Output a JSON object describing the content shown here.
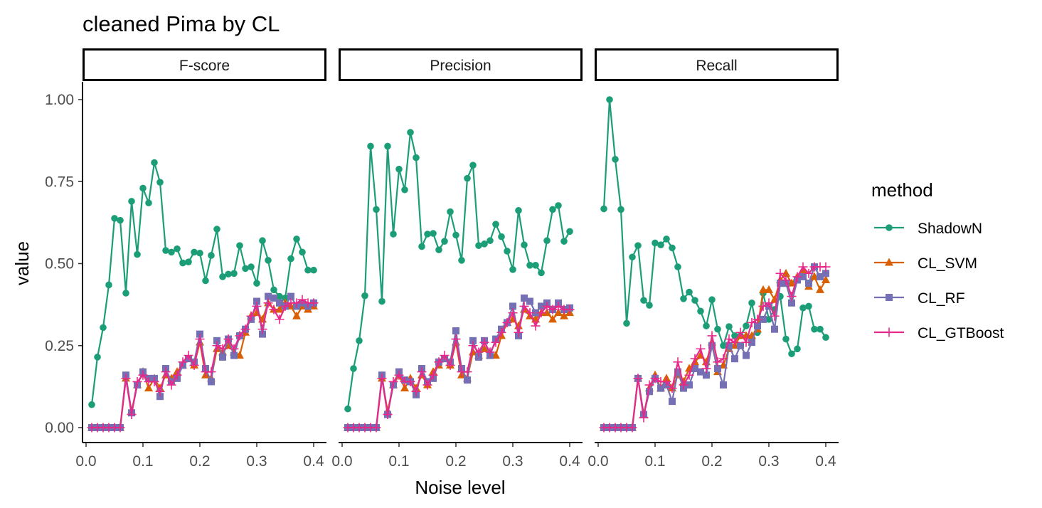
{
  "chart_data": {
    "type": "line",
    "title": "cleaned Pima by CL",
    "xlabel": "Noise level",
    "ylabel": "value",
    "xlim": [
      0.0,
      0.4
    ],
    "ylim": [
      0.0,
      1.0
    ],
    "x_ticks": [
      "0.0",
      "0.1",
      "0.2",
      "0.3",
      "0.4"
    ],
    "y_ticks": [
      "0.00",
      "0.25",
      "0.50",
      "0.75",
      "1.00"
    ],
    "legend_title": "method",
    "legend_position": "right",
    "x": [
      0.01,
      0.02,
      0.03,
      0.04,
      0.05,
      0.06,
      0.07,
      0.08,
      0.09,
      0.1,
      0.11,
      0.12,
      0.13,
      0.14,
      0.15,
      0.16,
      0.17,
      0.18,
      0.19,
      0.2,
      0.21,
      0.22,
      0.23,
      0.24,
      0.25,
      0.26,
      0.27,
      0.28,
      0.29,
      0.3,
      0.31,
      0.32,
      0.33,
      0.34,
      0.35,
      0.36,
      0.37,
      0.38,
      0.39,
      0.4
    ],
    "series_styles": [
      {
        "name": "ShadowN",
        "color": "#1B9E77",
        "marker": "circle"
      },
      {
        "name": "CL_SVM",
        "color": "#D95F02",
        "marker": "triangle"
      },
      {
        "name": "CL_RF",
        "color": "#7570B3",
        "marker": "square"
      },
      {
        "name": "CL_GTBoost",
        "color": "#E7298A",
        "marker": "plus"
      }
    ],
    "panels": [
      {
        "name": "F-score",
        "series": [
          {
            "name": "ShadowN",
            "values": [
              0.07,
              0.215,
              0.305,
              0.435,
              0.638,
              0.632,
              0.41,
              0.69,
              0.528,
              0.73,
              0.685,
              0.808,
              0.748,
              0.54,
              0.535,
              0.545,
              0.502,
              0.505,
              0.535,
              0.532,
              0.448,
              0.525,
              0.605,
              0.46,
              0.468,
              0.47,
              0.555,
              0.485,
              0.49,
              0.44,
              0.57,
              0.51,
              0.42,
              0.4,
              0.395,
              0.515,
              0.575,
              0.535,
              0.48,
              0.48
            ]
          },
          {
            "name": "CL_SVM",
            "values": [
              0,
              0,
              0,
              0,
              0,
              0,
              0.15,
              0.05,
              0.13,
              0.17,
              0.12,
              0.15,
              0.12,
              0.16,
              0.15,
              0.17,
              0.19,
              0.21,
              0.19,
              0.26,
              0.16,
              0.15,
              0.24,
              0.23,
              0.25,
              0.23,
              0.22,
              0.29,
              0.34,
              0.35,
              0.33,
              0.38,
              0.36,
              0.36,
              0.38,
              0.37,
              0.34,
              0.37,
              0.36,
              0.37
            ]
          },
          {
            "name": "CL_RF",
            "values": [
              0,
              0,
              0,
              0,
              0,
              0,
              0.16,
              0.045,
              0.13,
              0.17,
              0.15,
              0.15,
              0.095,
              0.18,
              0.14,
              0.15,
              0.19,
              0.21,
              0.2,
              0.285,
              0.18,
              0.14,
              0.265,
              0.215,
              0.27,
              0.22,
              0.28,
              0.3,
              0.33,
              0.385,
              0.285,
              0.4,
              0.395,
              0.38,
              0.37,
              0.4,
              0.37,
              0.38,
              0.37,
              0.38
            ]
          },
          {
            "name": "CL_GTBoost",
            "values": [
              0,
              0,
              0,
              0,
              0,
              0,
              0.15,
              0.04,
              0.14,
              0.16,
              0.14,
              0.14,
              0.11,
              0.17,
              0.13,
              0.16,
              0.2,
              0.22,
              0.19,
              0.27,
              0.17,
              0.17,
              0.25,
              0.24,
              0.27,
              0.24,
              0.28,
              0.3,
              0.34,
              0.37,
              0.3,
              0.38,
              0.36,
              0.33,
              0.37,
              0.38,
              0.38,
              0.39,
              0.38,
              0.38
            ]
          }
        ]
      },
      {
        "name": "Precision",
        "series": [
          {
            "name": "ShadowN",
            "values": [
              0.057,
              0.18,
              0.265,
              0.402,
              0.858,
              0.665,
              0.385,
              0.858,
              0.59,
              0.788,
              0.725,
              0.9,
              0.823,
              0.552,
              0.59,
              0.592,
              0.542,
              0.568,
              0.658,
              0.587,
              0.51,
              0.76,
              0.8,
              0.555,
              0.56,
              0.57,
              0.62,
              0.582,
              0.538,
              0.482,
              0.662,
              0.557,
              0.495,
              0.495,
              0.472,
              0.57,
              0.665,
              0.677,
              0.568,
              0.598
            ]
          },
          {
            "name": "CL_SVM",
            "values": [
              0,
              0,
              0,
              0,
              0,
              0,
              0.15,
              0.05,
              0.13,
              0.16,
              0.12,
              0.15,
              0.12,
              0.16,
              0.13,
              0.17,
              0.19,
              0.21,
              0.19,
              0.26,
              0.16,
              0.15,
              0.23,
              0.22,
              0.24,
              0.22,
              0.22,
              0.28,
              0.32,
              0.33,
              0.31,
              0.36,
              0.34,
              0.33,
              0.35,
              0.35,
              0.33,
              0.35,
              0.34,
              0.35
            ]
          },
          {
            "name": "CL_RF",
            "values": [
              0,
              0,
              0,
              0,
              0,
              0,
              0.16,
              0.04,
              0.13,
              0.17,
              0.145,
              0.14,
              0.1,
              0.18,
              0.14,
              0.15,
              0.2,
              0.21,
              0.2,
              0.295,
              0.18,
              0.145,
              0.265,
              0.215,
              0.265,
              0.22,
              0.27,
              0.3,
              0.32,
              0.37,
              0.28,
              0.395,
              0.385,
              0.35,
              0.37,
              0.38,
              0.36,
              0.38,
              0.36,
              0.365
            ]
          },
          {
            "name": "CL_GTBoost",
            "values": [
              0,
              0,
              0,
              0,
              0,
              0,
              0.15,
              0.04,
              0.14,
              0.16,
              0.14,
              0.14,
              0.11,
              0.17,
              0.13,
              0.16,
              0.2,
              0.22,
              0.19,
              0.27,
              0.17,
              0.17,
              0.25,
              0.23,
              0.26,
              0.23,
              0.26,
              0.29,
              0.32,
              0.35,
              0.29,
              0.37,
              0.35,
              0.31,
              0.35,
              0.37,
              0.36,
              0.37,
              0.36,
              0.36
            ]
          }
        ]
      },
      {
        "name": "Recall",
        "series": [
          {
            "name": "ShadowN",
            "values": [
              0.667,
              1.0,
              0.818,
              0.665,
              0.318,
              0.52,
              0.555,
              0.388,
              0.373,
              0.563,
              0.557,
              0.575,
              0.548,
              0.49,
              0.393,
              0.413,
              0.388,
              0.355,
              0.31,
              0.39,
              0.3,
              0.25,
              0.308,
              0.28,
              0.28,
              0.31,
              0.38,
              0.29,
              0.41,
              0.33,
              0.36,
              0.4,
              0.27,
              0.225,
              0.24,
              0.365,
              0.37,
              0.3,
              0.3,
              0.275
            ]
          },
          {
            "name": "CL_SVM",
            "values": [
              0,
              0,
              0,
              0,
              0,
              0,
              0.15,
              0.04,
              0.12,
              0.16,
              0.12,
              0.15,
              0.12,
              0.16,
              0.14,
              0.18,
              0.2,
              0.22,
              0.2,
              0.26,
              0.17,
              0.19,
              0.24,
              0.25,
              0.28,
              0.28,
              0.28,
              0.3,
              0.42,
              0.42,
              0.39,
              0.45,
              0.47,
              0.44,
              0.46,
              0.48,
              0.43,
              0.46,
              0.42,
              0.45
            ]
          },
          {
            "name": "CL_RF",
            "values": [
              0,
              0,
              0,
              0,
              0,
              0,
              0.15,
              0.04,
              0.11,
              0.15,
              0.12,
              0.13,
              0.08,
              0.17,
              0.12,
              0.13,
              0.18,
              0.17,
              0.16,
              0.25,
              0.18,
              0.13,
              0.25,
              0.21,
              0.25,
              0.22,
              0.26,
              0.31,
              0.33,
              0.37,
              0.3,
              0.44,
              0.44,
              0.38,
              0.45,
              0.46,
              0.44,
              0.49,
              0.46,
              0.47
            ]
          },
          {
            "name": "CL_GTBoost",
            "values": [
              0,
              0,
              0,
              0,
              0,
              0,
              0.15,
              0.03,
              0.13,
              0.15,
              0.14,
              0.14,
              0.12,
              0.2,
              0.13,
              0.16,
              0.21,
              0.24,
              0.18,
              0.28,
              0.2,
              0.21,
              0.27,
              0.26,
              0.29,
              0.26,
              0.32,
              0.33,
              0.37,
              0.38,
              0.34,
              0.47,
              0.45,
              0.4,
              0.46,
              0.49,
              0.47,
              0.49,
              0.49,
              0.49
            ]
          }
        ]
      }
    ]
  }
}
